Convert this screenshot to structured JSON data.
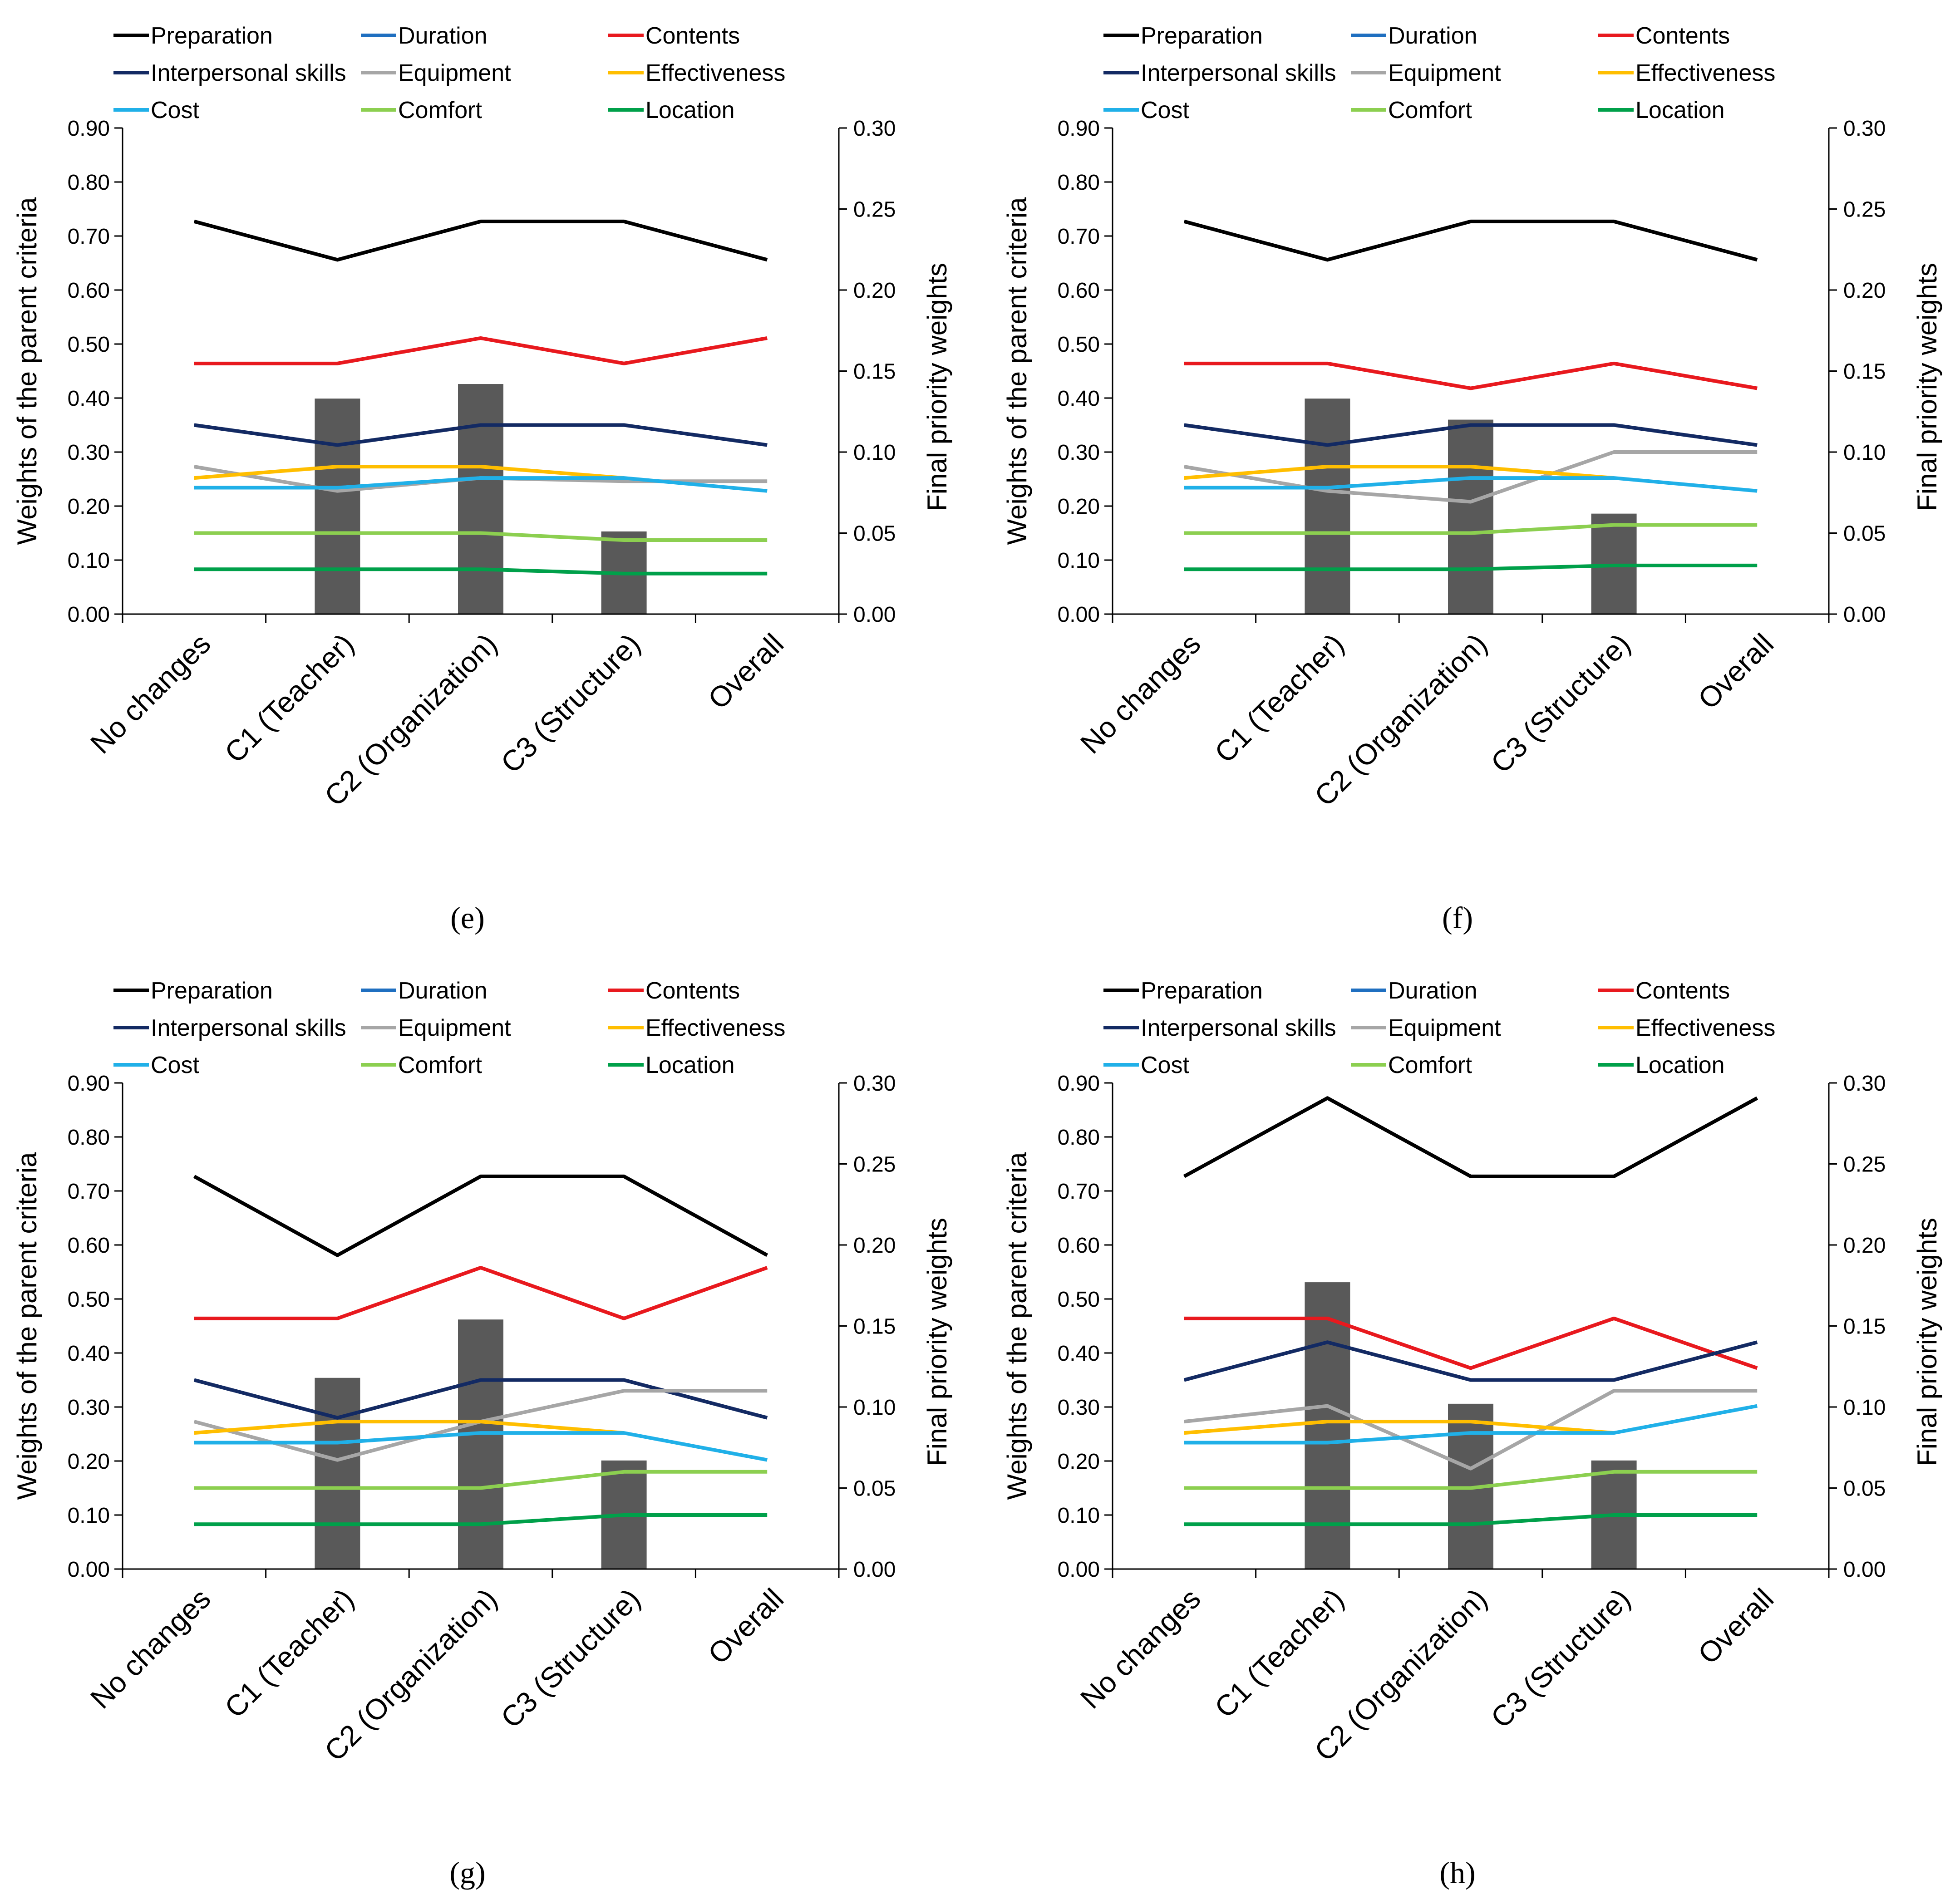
{
  "legend_colors": {
    "Preparation": "#000000",
    "Duration": "#1F6FC0",
    "Contents": "#E8191E",
    "Interpersonal skills": "#132A63",
    "Equipment": "#A6A6A6",
    "Effectiveness": "#FFBE00",
    "Cost": "#20B0E8",
    "Comfort": "#8CCF50",
    "Location": "#00A04A"
  },
  "bar_color": "#595959",
  "chart_data": [
    {
      "type": "bar+line",
      "caption": "(e)",
      "categories": [
        "No changes",
        "C1 (Teacher)",
        "C2 (Organization)",
        "C3 (Structure)",
        "Overall"
      ],
      "ylabel": "Weights of the parent criteria",
      "y2label": "Final priority weights",
      "ylim": [
        0,
        0.9
      ],
      "y2lim": [
        0,
        0.3
      ],
      "yticks": [
        "0.00",
        "0.10",
        "0.20",
        "0.30",
        "0.40",
        "0.50",
        "0.60",
        "0.70",
        "0.80",
        "0.90"
      ],
      "y2ticks": [
        "0.00",
        "0.05",
        "0.10",
        "0.15",
        "0.20",
        "0.25",
        "0.30"
      ],
      "bars": {
        "name": "Final priority weights",
        "values": [
          null,
          0.133,
          0.142,
          0.051,
          null
        ]
      },
      "series": [
        {
          "name": "Preparation",
          "values": [
            0.727,
            0.656,
            0.727,
            0.727,
            0.656
          ]
        },
        {
          "name": "Duration",
          "values": [
            null,
            null,
            null,
            null,
            null
          ]
        },
        {
          "name": "Contents",
          "values": [
            0.464,
            0.464,
            0.511,
            0.464,
            0.511
          ]
        },
        {
          "name": "Interpersonal skills",
          "values": [
            0.35,
            0.313,
            0.35,
            0.35,
            0.313
          ]
        },
        {
          "name": "Equipment",
          "values": [
            0.273,
            0.228,
            0.252,
            0.246,
            0.246
          ]
        },
        {
          "name": "Effectiveness",
          "values": [
            0.252,
            0.273,
            0.273,
            0.252,
            null
          ]
        },
        {
          "name": "Cost",
          "values": [
            0.234,
            0.234,
            0.252,
            0.252,
            0.228
          ]
        },
        {
          "name": "Comfort",
          "values": [
            0.15,
            0.15,
            0.15,
            0.137,
            0.137
          ]
        },
        {
          "name": "Location",
          "values": [
            0.083,
            0.083,
            0.083,
            0.075,
            0.075
          ]
        }
      ]
    },
    {
      "type": "bar+line",
      "caption": "(f)",
      "categories": [
        "No changes",
        "C1 (Teacher)",
        "C2 (Organization)",
        "C3 (Structure)",
        "Overall"
      ],
      "ylabel": "Weights of the parent criteria",
      "y2label": "Final priority weights",
      "ylim": [
        0,
        0.9
      ],
      "y2lim": [
        0,
        0.3
      ],
      "yticks": [
        "0.00",
        "0.10",
        "0.20",
        "0.30",
        "0.40",
        "0.50",
        "0.60",
        "0.70",
        "0.80",
        "0.90"
      ],
      "y2ticks": [
        "0.00",
        "0.05",
        "0.10",
        "0.15",
        "0.20",
        "0.25",
        "0.30"
      ],
      "bars": {
        "name": "Final priority weights",
        "values": [
          null,
          0.133,
          0.12,
          0.062,
          null
        ]
      },
      "series": [
        {
          "name": "Preparation",
          "values": [
            0.727,
            0.656,
            0.727,
            0.727,
            0.656
          ]
        },
        {
          "name": "Duration",
          "values": [
            null,
            null,
            null,
            null,
            null
          ]
        },
        {
          "name": "Contents",
          "values": [
            0.464,
            0.464,
            0.418,
            0.464,
            0.418
          ]
        },
        {
          "name": "Interpersonal skills",
          "values": [
            0.35,
            0.313,
            0.35,
            0.35,
            0.313
          ]
        },
        {
          "name": "Equipment",
          "values": [
            0.273,
            0.228,
            0.208,
            0.3,
            0.3
          ]
        },
        {
          "name": "Effectiveness",
          "values": [
            0.252,
            0.273,
            0.273,
            0.252,
            null
          ]
        },
        {
          "name": "Cost",
          "values": [
            0.234,
            0.234,
            0.252,
            0.252,
            0.228
          ]
        },
        {
          "name": "Comfort",
          "values": [
            0.15,
            0.15,
            0.15,
            0.165,
            0.165
          ]
        },
        {
          "name": "Location",
          "values": [
            0.083,
            0.083,
            0.083,
            0.09,
            0.09
          ]
        }
      ]
    },
    {
      "type": "bar+line",
      "caption": "(g)",
      "categories": [
        "No changes",
        "C1 (Teacher)",
        "C2 (Organization)",
        "C3 (Structure)",
        "Overall"
      ],
      "ylabel": "Weights of the parent criteria",
      "y2label": "Final priority weights",
      "ylim": [
        0,
        0.9
      ],
      "y2lim": [
        0,
        0.3
      ],
      "yticks": [
        "0.00",
        "0.10",
        "0.20",
        "0.30",
        "0.40",
        "0.50",
        "0.60",
        "0.70",
        "0.80",
        "0.90"
      ],
      "y2ticks": [
        "0.00",
        "0.05",
        "0.10",
        "0.15",
        "0.20",
        "0.25",
        "0.30"
      ],
      "bars": {
        "name": "Final priority weights",
        "values": [
          null,
          0.118,
          0.154,
          0.067,
          null
        ]
      },
      "series": [
        {
          "name": "Preparation",
          "values": [
            0.727,
            0.581,
            0.727,
            0.727,
            0.581
          ]
        },
        {
          "name": "Duration",
          "values": [
            null,
            null,
            null,
            null,
            null
          ]
        },
        {
          "name": "Contents",
          "values": [
            0.464,
            0.464,
            0.558,
            0.464,
            0.558
          ]
        },
        {
          "name": "Interpersonal skills",
          "values": [
            0.35,
            0.28,
            0.35,
            0.35,
            0.28
          ]
        },
        {
          "name": "Equipment",
          "values": [
            0.273,
            0.202,
            0.273,
            0.33,
            0.33
          ]
        },
        {
          "name": "Effectiveness",
          "values": [
            0.252,
            0.273,
            0.273,
            0.252,
            null
          ]
        },
        {
          "name": "Cost",
          "values": [
            0.234,
            0.234,
            0.252,
            0.252,
            0.202
          ]
        },
        {
          "name": "Comfort",
          "values": [
            0.15,
            0.15,
            0.15,
            0.18,
            0.18
          ]
        },
        {
          "name": "Location",
          "values": [
            0.083,
            0.083,
            0.083,
            0.1,
            0.1
          ]
        }
      ]
    },
    {
      "type": "bar+line",
      "caption": "(h)",
      "categories": [
        "No changes",
        "C1 (Teacher)",
        "C2 (Organization)",
        "C3 (Structure)",
        "Overall"
      ],
      "ylabel": "Weights of the parent criteria",
      "y2label": "Final priority weights",
      "ylim": [
        0,
        0.9
      ],
      "y2lim": [
        0,
        0.3
      ],
      "yticks": [
        "0.00",
        "0.10",
        "0.20",
        "0.30",
        "0.40",
        "0.50",
        "0.60",
        "0.70",
        "0.80",
        "0.90"
      ],
      "y2ticks": [
        "0.00",
        "0.05",
        "0.10",
        "0.15",
        "0.20",
        "0.25",
        "0.30"
      ],
      "bars": {
        "name": "Final priority weights",
        "values": [
          null,
          0.177,
          0.102,
          0.067,
          null
        ]
      },
      "series": [
        {
          "name": "Preparation",
          "values": [
            0.727,
            0.872,
            0.727,
            0.727,
            0.872
          ]
        },
        {
          "name": "Duration",
          "values": [
            null,
            null,
            null,
            null,
            null
          ]
        },
        {
          "name": "Contents",
          "values": [
            0.464,
            0.464,
            0.372,
            0.464,
            0.372
          ]
        },
        {
          "name": "Interpersonal skills",
          "values": [
            0.35,
            0.42,
            0.35,
            0.35,
            0.42
          ]
        },
        {
          "name": "Equipment",
          "values": [
            0.273,
            0.302,
            0.186,
            0.33,
            0.33
          ]
        },
        {
          "name": "Effectiveness",
          "values": [
            0.252,
            0.273,
            0.273,
            0.252,
            null
          ]
        },
        {
          "name": "Cost",
          "values": [
            0.234,
            0.234,
            0.252,
            0.252,
            0.302
          ]
        },
        {
          "name": "Comfort",
          "values": [
            0.15,
            0.15,
            0.15,
            0.18,
            0.18
          ]
        },
        {
          "name": "Location",
          "values": [
            0.083,
            0.083,
            0.083,
            0.1,
            0.1
          ]
        }
      ]
    }
  ]
}
